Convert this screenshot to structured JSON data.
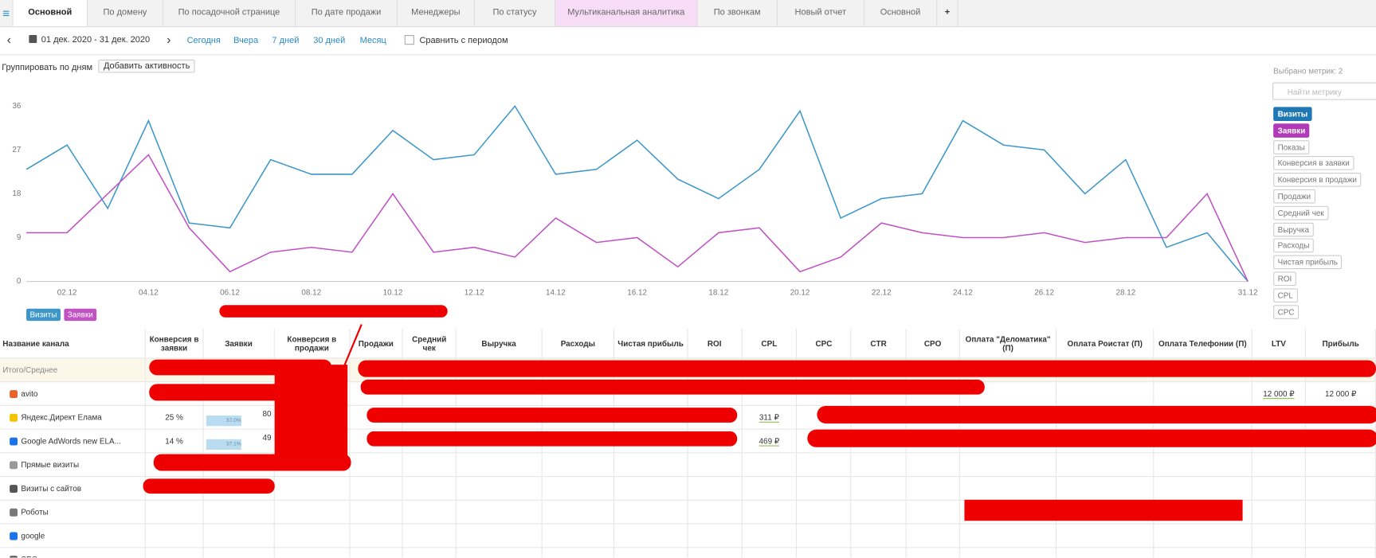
{
  "tabs": [
    "Основной",
    "По домену",
    "По посадочной странице",
    "По дате продажи",
    "Менеджеры",
    "По статусу",
    "Мультиканальная аналитика",
    "По звонкам",
    "Новый отчет",
    "Основной",
    "+"
  ],
  "toolbar": {
    "date_range": "01 дек. 2020 - 31 дек. 2020",
    "presets": [
      "Сегодня",
      "Вчера",
      "7 дней",
      "30 дней",
      "Месяц"
    ],
    "compare": "Сравнить с периодом",
    "group_by": "Группировать по дням",
    "add_activity": "Добавить активность"
  },
  "metrics_panel": {
    "selected": "Выбрано метрик: 2",
    "search_placeholder": "Найти метрику",
    "metrics": [
      "Визиты",
      "Заявки",
      "Показы",
      "Конверсия в заявки",
      "Конверсия в продажи",
      "Продажи",
      "Средний чек",
      "Выручка",
      "Расходы",
      "Чистая прибыль",
      "ROI",
      "CPL",
      "CPC"
    ]
  },
  "chart_data": {
    "type": "line",
    "categories": [
      null,
      "02.12",
      null,
      "04.12",
      null,
      "06.12",
      null,
      "08.12",
      null,
      "10.12",
      null,
      "12.12",
      null,
      "14.12",
      null,
      "16.12",
      null,
      "18.12",
      null,
      "20.12",
      null,
      "22.12",
      null,
      "24.12",
      null,
      "26.12",
      null,
      "28.12",
      null,
      null,
      "31.12"
    ],
    "series": [
      {
        "name": "Визиты",
        "color": "#3d97c9",
        "values": [
          23,
          28,
          15,
          33,
          12,
          11,
          25,
          22,
          22,
          31,
          25,
          26,
          36,
          22,
          23,
          29,
          21,
          17,
          23,
          35,
          13,
          17,
          18,
          33,
          28,
          27,
          18,
          25,
          7,
          10,
          0
        ]
      },
      {
        "name": "Заявки",
        "color": "#c052c4",
        "values": [
          10,
          10,
          18,
          26,
          11,
          2,
          6,
          7,
          6,
          18,
          6,
          7,
          5,
          13,
          8,
          9,
          3,
          10,
          11,
          2,
          5,
          12,
          10,
          9,
          9,
          10,
          8,
          9,
          9,
          18,
          0
        ]
      }
    ],
    "ylim": [
      0,
      36
    ],
    "yticks": [
      0,
      9,
      18,
      27,
      36
    ],
    "grid": false
  },
  "table": {
    "columns": [
      "Название канала",
      "Конверсия в заявки",
      "Заявки",
      "Конверсия в продажи",
      "Продажи",
      "Средний чек",
      "Выручка",
      "Расходы",
      "Чистая прибыль",
      "ROI",
      "CPL",
      "CPC",
      "CTR",
      "CPO",
      "Оплата \"Деломатика\" (П)",
      "Оплата Роистат (П)",
      "Оплата Телефонии (П)",
      "LTV",
      "Прибыль"
    ],
    "rows": [
      {
        "name": "Итого/Среднее"
      },
      {
        "name": "avito",
        "ltv": "12 000 ₽",
        "profit": "12 000 ₽"
      },
      {
        "name": "Яндекс.Директ Елама",
        "conversion": "25 %",
        "share": "37.0%",
        "leads": "80",
        "cpl": "311 ₽"
      },
      {
        "name": "Google AdWords new ELA...",
        "conversion": "14 %",
        "share": "37.1%",
        "leads": "49",
        "cpl": "469 ₽"
      },
      {
        "name": "Прямые визиты"
      },
      {
        "name": "Визиты с сайтов"
      },
      {
        "name": "Роботы"
      },
      {
        "name": "google"
      },
      {
        "name": "SEO"
      }
    ]
  }
}
